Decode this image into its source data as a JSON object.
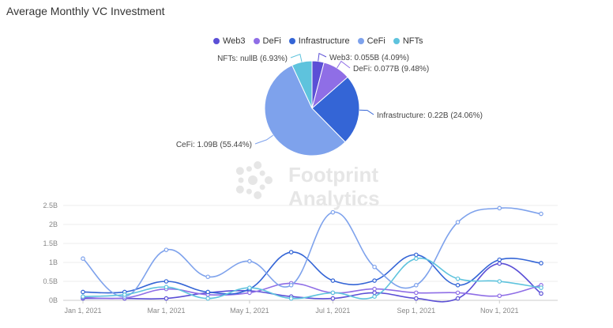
{
  "title": "Average Monthly VC Investment",
  "colors": {
    "Web3": "#5b4fd6",
    "DeFi": "#8f6ee6",
    "Infrastructure": "#3465d6",
    "CeFi": "#7ea2ec",
    "NFTs": "#5ec3dd"
  },
  "watermark": {
    "line1": "Footprint",
    "line2": "Analytics"
  },
  "chart_data": [
    {
      "type": "pie",
      "legend_placement": "top",
      "labels": [
        "Web3",
        "DeFi",
        "Infrastructure",
        "CeFi",
        "NFTs"
      ],
      "values": [
        0.055,
        0.077,
        0.22,
        1.09,
        null
      ],
      "percentages": [
        4.09,
        9.48,
        24.06,
        55.44,
        6.93
      ],
      "slice_labels": [
        "Web3: 0.055B (4.09%)",
        "DeFi: 0.077B (9.48%)",
        "Infrastructure: 0.22B (24.06%)",
        "CeFi: 1.09B (55.44%)",
        "NFTs: nullB (6.93%)"
      ]
    },
    {
      "type": "line",
      "x": [
        "2021-01-01",
        "2021-02-01",
        "2021-03-01",
        "2021-04-01",
        "2021-05-01",
        "2021-06-01",
        "2021-07-01",
        "2021-08-01",
        "2021-09-01",
        "2021-10-01",
        "2021-11-01",
        "2021-12-01"
      ],
      "x_tick_labels": [
        "Jan 1, 2021",
        "Mar 1, 2021",
        "May 1, 2021",
        "Jul 1, 2021",
        "Sep 1, 2021",
        "Nov 1, 2021"
      ],
      "y_tick_labels": [
        "0B",
        "0.5B",
        "1B",
        "1.5B",
        "2B",
        "2.5B"
      ],
      "ylim": [
        0,
        2.5
      ],
      "grid": true,
      "series": [
        {
          "name": "Web3",
          "values": [
            0.05,
            0.05,
            0.05,
            0.2,
            0.25,
            0.1,
            0.05,
            0.2,
            0.05,
            0.05,
            0.97,
            0.18
          ]
        },
        {
          "name": "DeFi",
          "values": [
            0.08,
            0.06,
            0.3,
            0.15,
            0.2,
            0.45,
            0.2,
            0.3,
            0.2,
            0.2,
            0.12,
            0.4
          ]
        },
        {
          "name": "Infrastructure",
          "values": [
            0.22,
            0.22,
            0.5,
            0.22,
            0.3,
            1.27,
            0.52,
            0.52,
            1.2,
            0.4,
            1.07,
            0.98
          ]
        },
        {
          "name": "CeFi",
          "values": [
            1.1,
            0.1,
            1.33,
            0.62,
            1.03,
            0.4,
            2.32,
            0.88,
            0.4,
            2.06,
            2.43,
            2.28
          ]
        },
        {
          "name": "NFTs",
          "values": [
            0.1,
            0.15,
            0.35,
            0.05,
            0.33,
            0.05,
            0.2,
            0.1,
            1.1,
            0.57,
            0.5,
            0.33
          ]
        }
      ]
    }
  ]
}
